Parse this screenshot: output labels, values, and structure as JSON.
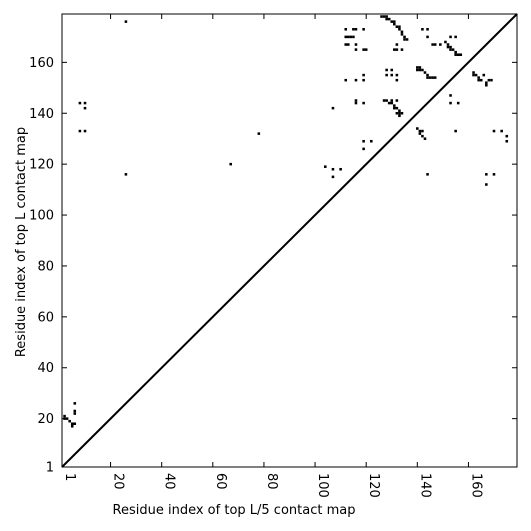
{
  "chart_data": {
    "type": "scatter",
    "xlabel": "Residue index of top L/5 contact map",
    "ylabel": "Residue index of top L contact map",
    "xlim": [
      1,
      179
    ],
    "ylim": [
      1,
      179
    ],
    "grid": false,
    "x_ticks": [
      1,
      20,
      40,
      60,
      80,
      100,
      120,
      140,
      160
    ],
    "y_ticks": [
      1,
      20,
      40,
      60,
      80,
      100,
      120,
      140,
      160
    ],
    "diagonal": {
      "from": [
        1,
        1
      ],
      "to": [
        179,
        179
      ]
    },
    "series": [
      {
        "points": [
          [
            26,
            176
          ],
          [
            67,
            120
          ],
          [
            78,
            132
          ],
          [
            104,
            119
          ],
          [
            107,
            115
          ],
          [
            107,
            118
          ],
          [
            110,
            118
          ],
          [
            107,
            142
          ],
          [
            112,
            153
          ],
          [
            116,
            153
          ],
          [
            116,
            145
          ],
          [
            116,
            144
          ],
          [
            119,
            144
          ],
          [
            119,
            153
          ],
          [
            119,
            155
          ],
          [
            119,
            129
          ],
          [
            119,
            126
          ],
          [
            122,
            129
          ],
          [
            112,
            173
          ],
          [
            112,
            170
          ],
          [
            113,
            170
          ],
          [
            114,
            170
          ],
          [
            115,
            170
          ],
          [
            115,
            173
          ],
          [
            116,
            173
          ],
          [
            112,
            167
          ],
          [
            113,
            167
          ],
          [
            116,
            167
          ],
          [
            116,
            165
          ],
          [
            119,
            165
          ],
          [
            120,
            165
          ],
          [
            119,
            173
          ],
          [
            126,
            178
          ],
          [
            127,
            178
          ],
          [
            128,
            178
          ],
          [
            128,
            177
          ],
          [
            129,
            177
          ],
          [
            130,
            176
          ],
          [
            131,
            176
          ],
          [
            131,
            175
          ],
          [
            132,
            174
          ],
          [
            133,
            174
          ],
          [
            133,
            173
          ],
          [
            134,
            172
          ],
          [
            134,
            171
          ],
          [
            135,
            170
          ],
          [
            136,
            169
          ],
          [
            135,
            169
          ],
          [
            132,
            167
          ],
          [
            132,
            165
          ],
          [
            134,
            165
          ],
          [
            131,
            165
          ],
          [
            128,
            157
          ],
          [
            128,
            155
          ],
          [
            130,
            157
          ],
          [
            130,
            155
          ],
          [
            132,
            155
          ],
          [
            132,
            153
          ],
          [
            127,
            145
          ],
          [
            128,
            145
          ],
          [
            129,
            144
          ],
          [
            130,
            144
          ],
          [
            131,
            143
          ],
          [
            132,
            142
          ],
          [
            131,
            142
          ],
          [
            133,
            141
          ],
          [
            133,
            140
          ],
          [
            132,
            140
          ],
          [
            134,
            140
          ],
          [
            133,
            139
          ],
          [
            130,
            145
          ],
          [
            132,
            145
          ],
          [
            140,
            158
          ],
          [
            141,
            158
          ],
          [
            142,
            157
          ],
          [
            141,
            157
          ],
          [
            143,
            156
          ],
          [
            144,
            155
          ],
          [
            145,
            154
          ],
          [
            146,
            154
          ],
          [
            147,
            154
          ],
          [
            140,
            157
          ],
          [
            144,
            154
          ],
          [
            140,
            134
          ],
          [
            141,
            133
          ],
          [
            142,
            133
          ],
          [
            141,
            132
          ],
          [
            142,
            131
          ],
          [
            143,
            130
          ],
          [
            142,
            173
          ],
          [
            144,
            173
          ],
          [
            144,
            170
          ],
          [
            146,
            167
          ],
          [
            147,
            167
          ],
          [
            149,
            167
          ],
          [
            151,
            168
          ],
          [
            152,
            167
          ],
          [
            152,
            166
          ],
          [
            153,
            166
          ],
          [
            153,
            165
          ],
          [
            154,
            165
          ],
          [
            155,
            164
          ],
          [
            155,
            163
          ],
          [
            156,
            163
          ],
          [
            157,
            163
          ],
          [
            153,
            170
          ],
          [
            155,
            170
          ],
          [
            153,
            147
          ],
          [
            153,
            144
          ],
          [
            156,
            144
          ],
          [
            155,
            133
          ],
          [
            144,
            116
          ],
          [
            162,
            156
          ],
          [
            162,
            155
          ],
          [
            163,
            155
          ],
          [
            164,
            154
          ],
          [
            164,
            153
          ],
          [
            165,
            153
          ],
          [
            166,
            155
          ],
          [
            167,
            152
          ],
          [
            167,
            151
          ],
          [
            168,
            153
          ],
          [
            169,
            153
          ],
          [
            167,
            116
          ],
          [
            167,
            112
          ],
          [
            170,
            116
          ],
          [
            170,
            133
          ],
          [
            173,
            133
          ],
          [
            175,
            131
          ],
          [
            175,
            129
          ],
          [
            2,
            21
          ],
          [
            2,
            20
          ],
          [
            3,
            20
          ],
          [
            4,
            19
          ],
          [
            5,
            18
          ],
          [
            5,
            17
          ],
          [
            6,
            18
          ],
          [
            6,
            22
          ],
          [
            6,
            23
          ],
          [
            6,
            26
          ],
          [
            26,
            116
          ],
          [
            8,
            133
          ],
          [
            8,
            144
          ],
          [
            10,
            144
          ],
          [
            10,
            142
          ],
          [
            10,
            133
          ]
        ]
      }
    ]
  }
}
